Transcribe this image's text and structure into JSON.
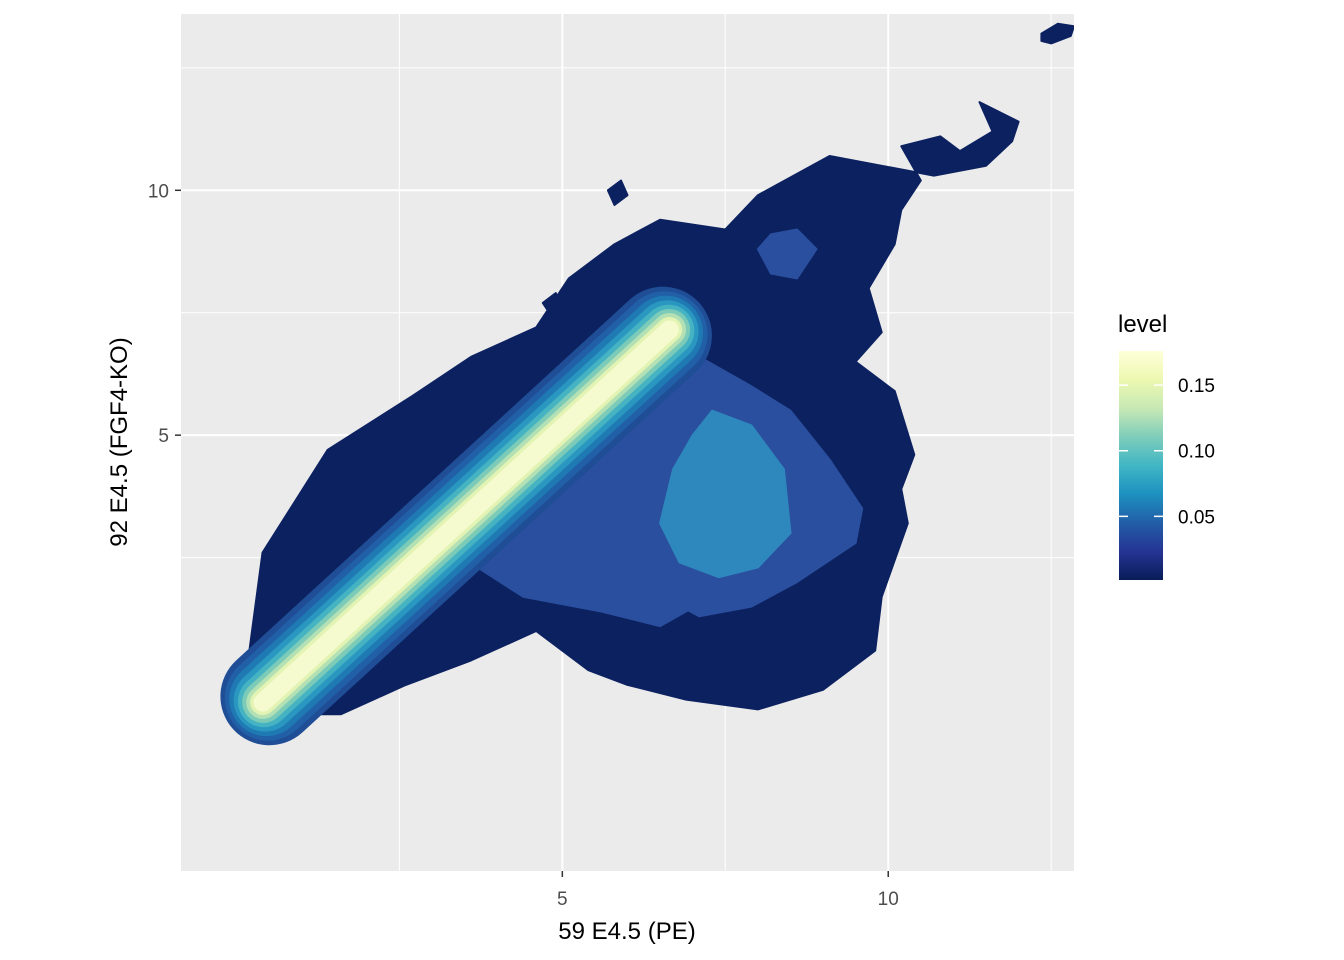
{
  "chart_data": {
    "type": "contour",
    "xlabel": "59 E4.5 (PE)",
    "ylabel": "92 E4.5 (FGF4-KO)",
    "xlim": [
      -0.85,
      12.85
    ],
    "ylim": [
      -3.9,
      13.6
    ],
    "x_ticks": [
      5,
      10
    ],
    "x_tick_labels": [
      "5",
      "10"
    ],
    "x_minor": [
      2.5,
      7.5,
      12.5
    ],
    "y_ticks": [
      5,
      10
    ],
    "y_tick_labels": [
      "5",
      "10"
    ],
    "y_minor": [
      2.5,
      7.5,
      12.5
    ],
    "grid": true,
    "panel_background": "#ebebeb",
    "legend": {
      "title": "level",
      "placement": "right",
      "range": [
        0.0015,
        0.176
      ],
      "breaks": [
        0.05,
        0.1,
        0.15
      ],
      "break_labels": [
        "0.05",
        "0.10",
        "0.15"
      ],
      "colors": [
        "#081d58",
        "#253494",
        "#225ea8",
        "#1d91c0",
        "#41b6c4",
        "#7fcdbb",
        "#c7e9b4",
        "#edf8b1",
        "#ffffd9"
      ]
    },
    "regions": [
      {
        "name": "outer-contour",
        "color": "#0c2160",
        "points": [
          [
            0.8,
            -0.7
          ],
          [
            1.6,
            -0.7
          ],
          [
            2.6,
            -0.1
          ],
          [
            3.6,
            0.4
          ],
          [
            4.6,
            1.0
          ],
          [
            5.4,
            0.2
          ],
          [
            6.0,
            -0.1
          ],
          [
            6.9,
            -0.4
          ],
          [
            8.0,
            -0.6
          ],
          [
            9.0,
            -0.2
          ],
          [
            9.8,
            0.6
          ],
          [
            9.9,
            1.7
          ],
          [
            10.3,
            3.2
          ],
          [
            10.2,
            3.9
          ],
          [
            10.4,
            4.6
          ],
          [
            10.1,
            5.9
          ],
          [
            9.5,
            6.5
          ],
          [
            9.9,
            7.1
          ],
          [
            9.7,
            8.0
          ],
          [
            10.1,
            8.9
          ],
          [
            10.2,
            9.6
          ],
          [
            10.5,
            10.2
          ],
          [
            10.2,
            10.9
          ],
          [
            10.8,
            11.1
          ],
          [
            11.1,
            10.8
          ],
          [
            11.6,
            11.2
          ],
          [
            11.4,
            11.8
          ],
          [
            12.0,
            11.4
          ],
          [
            11.9,
            11.0
          ],
          [
            11.5,
            10.5
          ],
          [
            10.7,
            10.3
          ],
          [
            9.1,
            10.7
          ],
          [
            8.0,
            9.9
          ],
          [
            7.5,
            9.2
          ],
          [
            6.5,
            9.4
          ],
          [
            5.8,
            8.9
          ],
          [
            5.1,
            8.2
          ],
          [
            4.6,
            7.2
          ],
          [
            3.6,
            6.6
          ],
          [
            2.7,
            5.8
          ],
          [
            1.4,
            4.7
          ],
          [
            0.4,
            2.6
          ],
          [
            0.2,
            0.6
          ],
          [
            0.4,
            -0.3
          ]
        ]
      },
      {
        "name": "island-top-right",
        "color": "#0c2160",
        "points": [
          [
            12.35,
            13.2
          ],
          [
            12.6,
            13.4
          ],
          [
            12.85,
            13.35
          ],
          [
            12.8,
            13.15
          ],
          [
            12.5,
            13.0
          ],
          [
            12.35,
            13.05
          ]
        ]
      },
      {
        "name": "island-a",
        "color": "#0c2160",
        "points": [
          [
            5.7,
            10.0
          ],
          [
            5.9,
            10.2
          ],
          [
            6.0,
            9.9
          ],
          [
            5.8,
            9.7
          ]
        ]
      },
      {
        "name": "island-b",
        "color": "#0c2160",
        "points": [
          [
            4.7,
            7.7
          ],
          [
            4.9,
            7.9
          ],
          [
            5.0,
            7.6
          ],
          [
            4.8,
            7.5
          ]
        ]
      },
      {
        "name": "mid-blob-left",
        "color": "#2a4f9e",
        "points": [
          [
            4.8,
            4.5
          ],
          [
            5.5,
            4.2
          ],
          [
            6.2,
            3.7
          ],
          [
            6.8,
            3.5
          ],
          [
            7.4,
            3.2
          ],
          [
            7.6,
            2.5
          ],
          [
            7.3,
            1.7
          ],
          [
            6.5,
            1.1
          ],
          [
            5.6,
            1.4
          ],
          [
            4.4,
            1.7
          ],
          [
            3.7,
            2.3
          ],
          [
            4.5,
            3.3
          ]
        ]
      },
      {
        "name": "mid-blob-main",
        "color": "#2a4f9e",
        "points": [
          [
            6.2,
            6.7
          ],
          [
            7.1,
            6.6
          ],
          [
            7.9,
            6.0
          ],
          [
            8.5,
            5.5
          ],
          [
            9.1,
            4.5
          ],
          [
            9.6,
            3.5
          ],
          [
            9.5,
            2.8
          ],
          [
            8.6,
            2.0
          ],
          [
            7.9,
            1.5
          ],
          [
            7.1,
            1.3
          ],
          [
            6.4,
            1.8
          ],
          [
            5.9,
            2.6
          ],
          [
            5.4,
            3.5
          ],
          [
            5.0,
            4.7
          ],
          [
            5.3,
            5.9
          ]
        ]
      },
      {
        "name": "mid-blob-upper",
        "color": "#2a4f9e",
        "points": [
          [
            8.2,
            9.1
          ],
          [
            8.6,
            9.2
          ],
          [
            8.9,
            8.8
          ],
          [
            8.6,
            8.2
          ],
          [
            8.2,
            8.3
          ],
          [
            8.0,
            8.8
          ]
        ]
      },
      {
        "name": "inner-blob",
        "color": "#2e88bd",
        "points": [
          [
            7.3,
            5.5
          ],
          [
            7.9,
            5.2
          ],
          [
            8.4,
            4.3
          ],
          [
            8.5,
            3.0
          ],
          [
            8.0,
            2.3
          ],
          [
            7.4,
            2.1
          ],
          [
            6.8,
            2.4
          ],
          [
            6.5,
            3.2
          ],
          [
            6.7,
            4.3
          ],
          [
            7.0,
            5.0
          ]
        ]
      }
    ],
    "ridge": {
      "start": [
        0.45,
        -0.4
      ],
      "end": [
        6.6,
        7.1
      ],
      "half_widths": [
        1.0,
        0.88,
        0.76,
        0.64,
        0.53,
        0.43,
        0.34,
        0.26,
        0.19
      ],
      "end_pad": [
        0.9,
        0.82,
        0.74,
        0.66,
        0.58,
        0.5,
        0.42,
        0.34,
        0.27
      ],
      "colors": [
        "#1f4d96",
        "#215fa6",
        "#1f79b3",
        "#2a97c1",
        "#45b3c1",
        "#7bcbb8",
        "#b3e0b4",
        "#e2f3b3",
        "#f6fbcf"
      ]
    }
  }
}
